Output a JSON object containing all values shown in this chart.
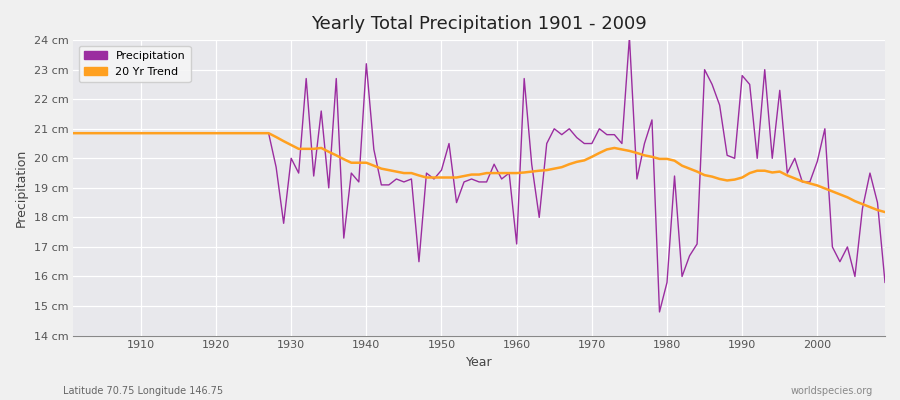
{
  "title": "Yearly Total Precipitation 1901 - 2009",
  "xlabel": "Year",
  "ylabel": "Precipitation",
  "subtitle": "Latitude 70.75 Longitude 146.75",
  "watermark": "worldspecies.org",
  "ylim": [
    14,
    24
  ],
  "xlim": [
    1901,
    2009
  ],
  "yticks": [
    14,
    15,
    16,
    17,
    18,
    19,
    20,
    21,
    22,
    23,
    24
  ],
  "ytick_labels": [
    "14 cm",
    "15 cm",
    "16 cm",
    "17 cm",
    "18 cm",
    "19 cm",
    "20 cm",
    "21 cm",
    "22 cm",
    "23 cm",
    "24 cm"
  ],
  "precip_color": "#9B2DA0",
  "trend_color": "#FFA020",
  "bg_color": "#F0F0F0",
  "plot_bg_color": "#E8E8EC",
  "grid_color": "#FFFFFF",
  "legend_labels": [
    "Precipitation",
    "20 Yr Trend"
  ],
  "years": [
    1901,
    1902,
    1903,
    1904,
    1905,
    1906,
    1907,
    1908,
    1909,
    1910,
    1911,
    1912,
    1913,
    1914,
    1915,
    1916,
    1917,
    1918,
    1919,
    1920,
    1921,
    1922,
    1923,
    1924,
    1925,
    1926,
    1927,
    1928,
    1929,
    1930,
    1931,
    1932,
    1933,
    1934,
    1935,
    1936,
    1937,
    1938,
    1939,
    1940,
    1941,
    1942,
    1943,
    1944,
    1945,
    1946,
    1947,
    1948,
    1949,
    1950,
    1951,
    1952,
    1953,
    1954,
    1955,
    1956,
    1957,
    1958,
    1959,
    1960,
    1961,
    1962,
    1963,
    1964,
    1965,
    1966,
    1967,
    1968,
    1969,
    1970,
    1971,
    1972,
    1973,
    1974,
    1975,
    1976,
    1977,
    1978,
    1979,
    1980,
    1981,
    1982,
    1983,
    1984,
    1985,
    1986,
    1987,
    1988,
    1989,
    1990,
    1991,
    1992,
    1993,
    1994,
    1995,
    1996,
    1997,
    1998,
    1999,
    2000,
    2001,
    2002,
    2003,
    2004,
    2005,
    2006,
    2007,
    2008,
    2009
  ],
  "precipitation": [
    20.85,
    20.85,
    20.85,
    20.85,
    20.85,
    20.85,
    20.85,
    20.85,
    20.85,
    20.85,
    20.85,
    20.85,
    20.85,
    20.85,
    20.85,
    20.85,
    20.85,
    20.85,
    20.85,
    20.85,
    20.85,
    20.85,
    20.85,
    20.85,
    20.85,
    20.85,
    20.85,
    19.7,
    17.8,
    20.0,
    19.5,
    22.7,
    19.4,
    21.6,
    19.0,
    22.7,
    17.3,
    19.5,
    19.2,
    23.2,
    20.3,
    19.1,
    19.1,
    19.3,
    19.2,
    19.3,
    16.5,
    19.5,
    19.3,
    19.6,
    20.5,
    18.5,
    19.2,
    19.3,
    19.2,
    19.2,
    19.8,
    19.3,
    19.5,
    17.1,
    22.7,
    19.8,
    18.0,
    20.5,
    21.0,
    20.8,
    21.0,
    20.7,
    20.5,
    20.5,
    21.0,
    20.8,
    20.8,
    20.5,
    24.1,
    19.3,
    20.5,
    21.3,
    14.8,
    15.8,
    19.4,
    16.0,
    16.7,
    17.1,
    23.0,
    22.5,
    21.8,
    20.1,
    20.0,
    22.8,
    22.5,
    20.0,
    23.0,
    20.0,
    22.3,
    19.5,
    20.0,
    19.2,
    19.2,
    19.9,
    21.0,
    17.0,
    16.5,
    17.0,
    16.0,
    18.3,
    19.5,
    18.5,
    15.8
  ],
  "trend": [
    20.85,
    20.85,
    20.85,
    20.85,
    20.85,
    20.85,
    20.85,
    20.85,
    20.85,
    20.85,
    20.85,
    20.85,
    20.85,
    20.85,
    20.85,
    20.85,
    20.85,
    20.85,
    20.85,
    20.85,
    20.85,
    20.85,
    20.85,
    20.85,
    20.85,
    20.85,
    20.85,
    20.72,
    20.58,
    20.45,
    20.32,
    20.32,
    20.32,
    20.35,
    20.22,
    20.1,
    19.97,
    19.85,
    19.85,
    19.85,
    19.75,
    19.65,
    19.6,
    19.55,
    19.5,
    19.5,
    19.42,
    19.35,
    19.35,
    19.35,
    19.35,
    19.35,
    19.4,
    19.45,
    19.45,
    19.5,
    19.5,
    19.5,
    19.5,
    19.5,
    19.52,
    19.55,
    19.58,
    19.6,
    19.65,
    19.7,
    19.8,
    19.88,
    19.93,
    20.05,
    20.18,
    20.3,
    20.35,
    20.3,
    20.25,
    20.18,
    20.1,
    20.05,
    19.98,
    19.98,
    19.92,
    19.75,
    19.65,
    19.55,
    19.43,
    19.38,
    19.3,
    19.25,
    19.28,
    19.35,
    19.5,
    19.58,
    19.58,
    19.52,
    19.55,
    19.42,
    19.32,
    19.22,
    19.15,
    19.08,
    18.98,
    18.88,
    18.78,
    18.68,
    18.55,
    18.45,
    18.35,
    18.25,
    18.18
  ]
}
